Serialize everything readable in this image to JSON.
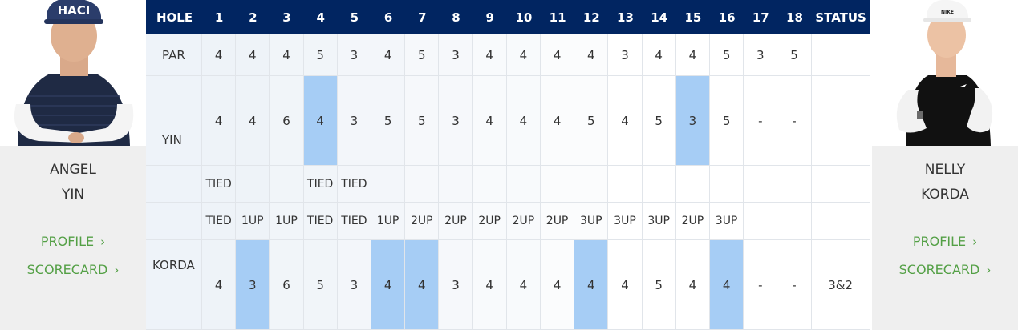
{
  "header": {
    "hole_label": "HOLE",
    "holes": [
      "1",
      "2",
      "3",
      "4",
      "5",
      "6",
      "7",
      "8",
      "9",
      "10",
      "11",
      "12",
      "13",
      "14",
      "15",
      "16",
      "17",
      "18"
    ],
    "status_label": "STATUS"
  },
  "par": {
    "label": "PAR",
    "values": [
      "4",
      "4",
      "4",
      "5",
      "3",
      "4",
      "5",
      "3",
      "4",
      "4",
      "4",
      "4",
      "3",
      "4",
      "4",
      "5",
      "3",
      "5"
    ]
  },
  "players": [
    {
      "first_name": "ANGEL",
      "last_name": "YIN",
      "row_label": "YIN",
      "profile_label": "PROFILE",
      "scorecard_label": "SCORECARD",
      "scores": [
        "4",
        "4",
        "6",
        "4",
        "3",
        "5",
        "5",
        "3",
        "4",
        "4",
        "4",
        "5",
        "4",
        "5",
        "3",
        "5",
        "-",
        "-"
      ],
      "hole_wins": [
        4,
        15
      ],
      "match_status": [
        "TIED",
        "",
        "",
        "TIED",
        "TIED",
        "",
        "",
        "",
        "",
        "",
        "",
        "",
        "",
        "",
        "",
        "",
        "",
        ""
      ]
    },
    {
      "first_name": "NELLY",
      "last_name": "KORDA",
      "row_label": "KORDA",
      "profile_label": "PROFILE",
      "scorecard_label": "SCORECARD",
      "match_status": [
        "TIED",
        "1UP",
        "1UP",
        "TIED",
        "TIED",
        "1UP",
        "2UP",
        "2UP",
        "2UP",
        "2UP",
        "2UP",
        "3UP",
        "3UP",
        "3UP",
        "2UP",
        "3UP",
        "",
        ""
      ],
      "scores": [
        "4",
        "3",
        "6",
        "5",
        "3",
        "4",
        "4",
        "3",
        "4",
        "4",
        "4",
        "4",
        "4",
        "5",
        "4",
        "4",
        "-",
        "-"
      ],
      "hole_wins": [
        2,
        6,
        7,
        12,
        16
      ],
      "status": "3&2"
    }
  ],
  "colors": {
    "header_bg": "#012561",
    "hole_win_highlight": "#a6cdf5",
    "link_green": "#54a046"
  }
}
